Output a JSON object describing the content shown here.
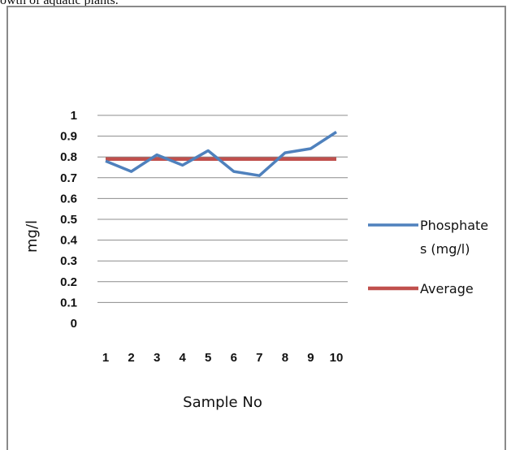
{
  "page": {
    "top_text": "owth of aquatic plants."
  },
  "colors": {
    "series_phosphate": "#4f81bd",
    "series_average": "#c0504d",
    "gridline": "#8c8c8c",
    "frame": "#8a8a8a"
  },
  "chart_data": {
    "type": "line",
    "title": "",
    "xlabel": "Sample No",
    "ylabel": "mg/l",
    "x": [
      1,
      2,
      3,
      4,
      5,
      6,
      7,
      8,
      9,
      10
    ],
    "x_tick_labels": [
      "1",
      "2",
      "3",
      "4",
      "5",
      "6",
      "7",
      "8",
      "9",
      "10"
    ],
    "y_tick_labels": [
      "0",
      "0.1",
      "0.2",
      "0.3",
      "0.4",
      "0.5",
      "0.6",
      "0.7",
      "0.8",
      "0.9",
      "1"
    ],
    "ylim": [
      0,
      1
    ],
    "grid": true,
    "legend_position": "right",
    "series": [
      {
        "name": "Phosphates (mg/l)",
        "legend_lines": [
          "Phosphate",
          "s (mg/l)"
        ],
        "values": [
          0.78,
          0.73,
          0.81,
          0.76,
          0.83,
          0.73,
          0.71,
          0.82,
          0.84,
          0.92
        ]
      },
      {
        "name": "Average",
        "legend_lines": [
          "Average"
        ],
        "values": [
          0.79,
          0.79,
          0.79,
          0.79,
          0.79,
          0.79,
          0.79,
          0.79,
          0.79,
          0.79
        ]
      }
    ]
  }
}
